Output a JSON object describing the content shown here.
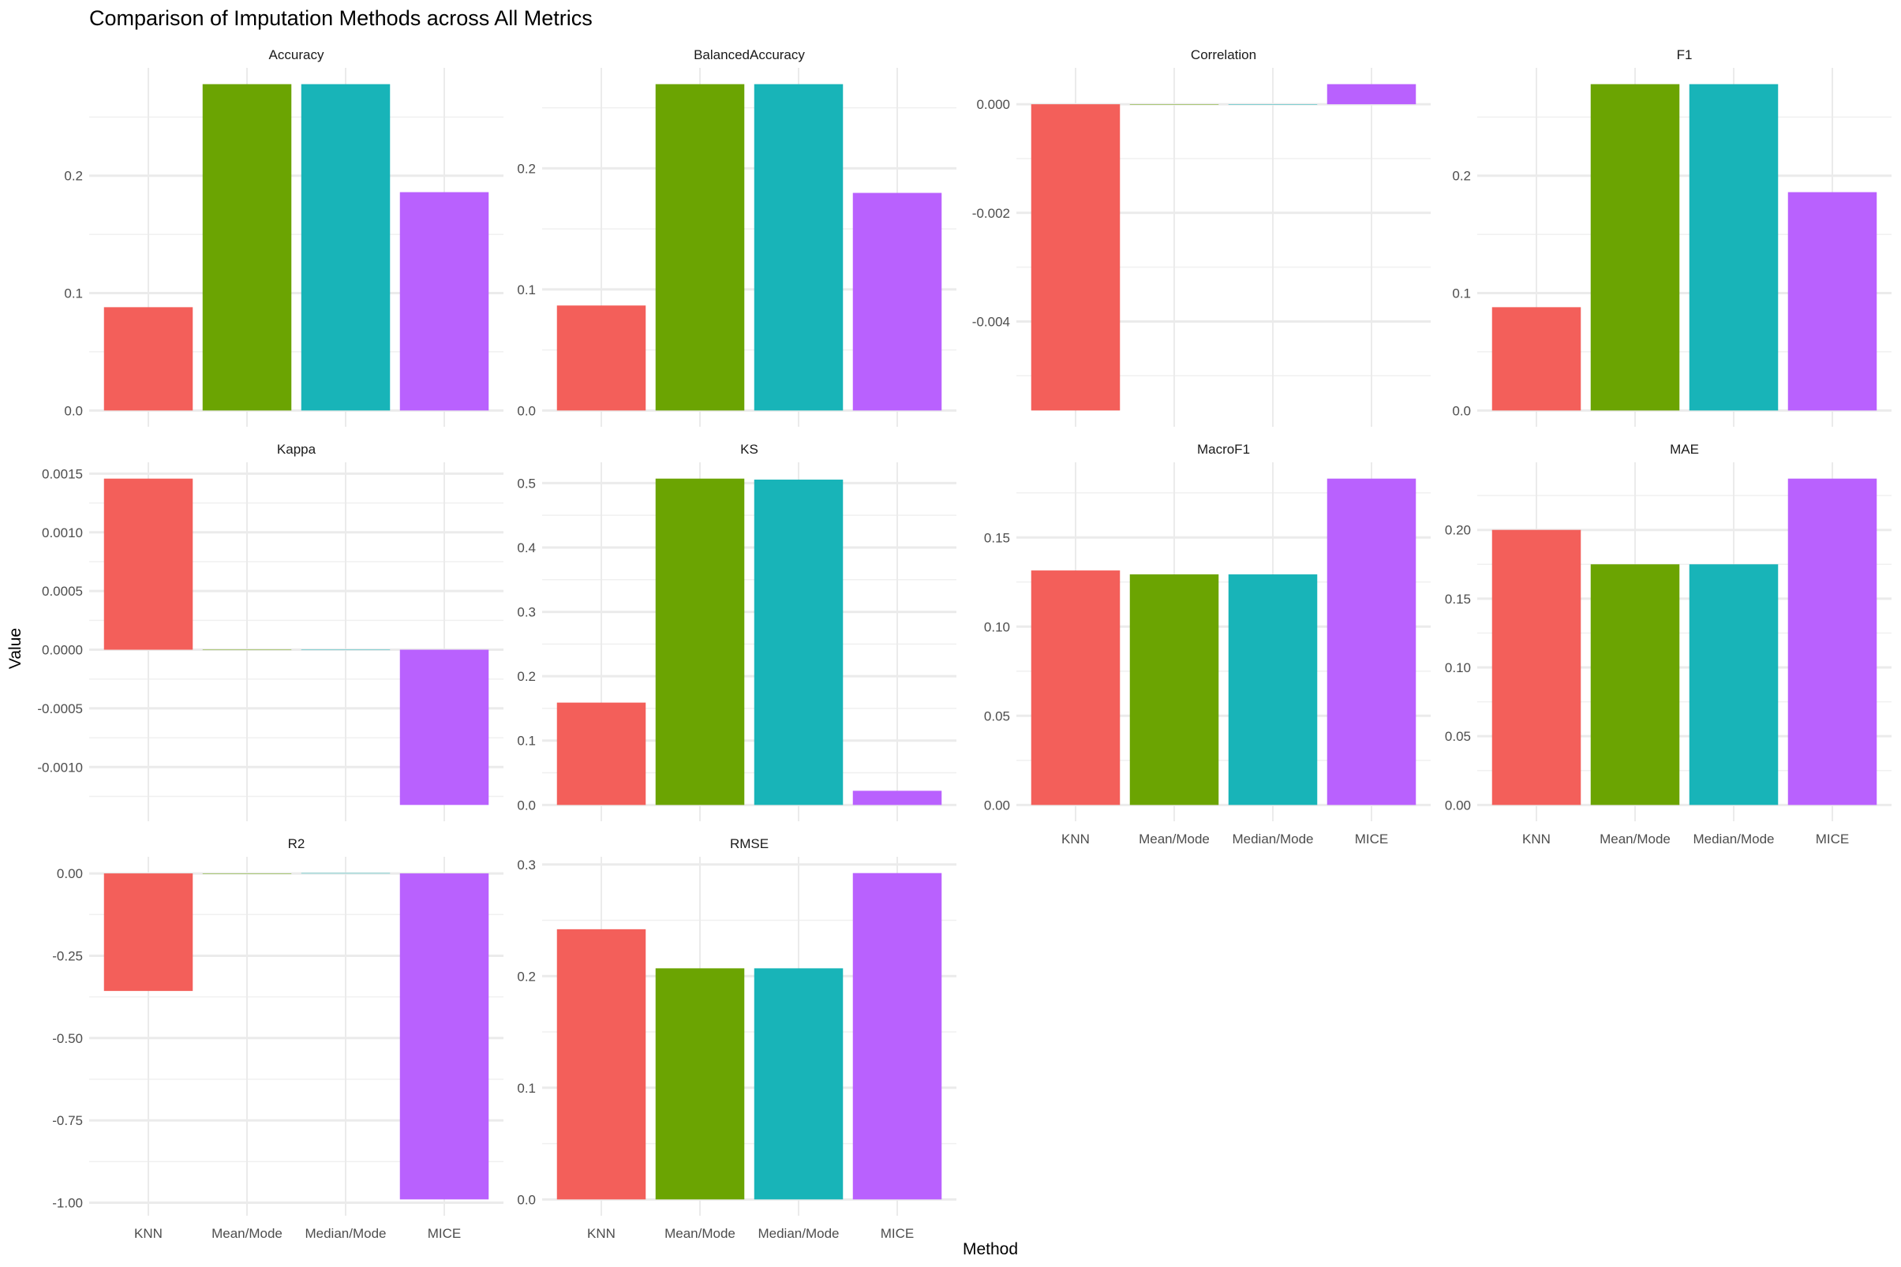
{
  "chart_data": {
    "type": "bar",
    "title": "Comparison of Imputation Methods across All Metrics",
    "xlabel": "Method",
    "ylabel": "Value",
    "categories": [
      "KNN",
      "Mean/Mode",
      "Median/Mode",
      "MICE"
    ],
    "colors": [
      "#F35F5A",
      "#6BA402",
      "#18B4B8",
      "#B961FE"
    ],
    "grid": true,
    "legend": "none",
    "facets": [
      {
        "name": "Accuracy",
        "values": [
          0.088,
          0.278,
          0.278,
          0.186
        ],
        "ticks": [
          0,
          0.1,
          0.2
        ],
        "tick_labels": [
          "0.0",
          "0.1",
          "0.2"
        ]
      },
      {
        "name": "BalancedAccuracy",
        "values": [
          0.0867,
          0.2695,
          0.2695,
          0.1797
        ],
        "ticks": [
          0,
          0.1,
          0.2
        ],
        "tick_labels": [
          "0.0",
          "0.1",
          "0.2"
        ]
      },
      {
        "name": "Correlation",
        "values": [
          -0.00564,
          0,
          0,
          0.00037
        ],
        "ticks": [
          -0.004,
          -0.002,
          0
        ],
        "tick_labels": [
          "-0.004",
          "-0.002",
          "0.000"
        ]
      },
      {
        "name": "F1",
        "values": [
          0.088,
          0.278,
          0.278,
          0.186
        ],
        "ticks": [
          0,
          0.1,
          0.2
        ],
        "tick_labels": [
          "0.0",
          "0.1",
          "0.2"
        ]
      },
      {
        "name": "Kappa",
        "values": [
          0.001458,
          0,
          0,
          -0.001323
        ],
        "ticks": [
          -0.001,
          -0.0005,
          0,
          0.0005,
          0.001,
          0.0015
        ],
        "tick_labels": [
          "-0.0010",
          "-0.0005",
          "0.0000",
          "0.0005",
          "0.0010",
          "0.0015"
        ]
      },
      {
        "name": "KS",
        "values": [
          0.159,
          0.507,
          0.5055,
          0.022
        ],
        "ticks": [
          0,
          0.1,
          0.2,
          0.3,
          0.4,
          0.5
        ],
        "tick_labels": [
          "0.0",
          "0.1",
          "0.2",
          "0.3",
          "0.4",
          "0.5"
        ]
      },
      {
        "name": "MacroF1",
        "values": [
          0.1315,
          0.1293,
          0.1293,
          0.183
        ],
        "ticks": [
          0,
          0.05,
          0.1,
          0.15
        ],
        "tick_labels": [
          "0.00",
          "0.05",
          "0.10",
          "0.15"
        ]
      },
      {
        "name": "MAE",
        "values": [
          0.2,
          0.175,
          0.175,
          0.2373
        ],
        "ticks": [
          0,
          0.05,
          0.1,
          0.15,
          0.2
        ],
        "tick_labels": [
          "0.00",
          "0.05",
          "0.10",
          "0.15",
          "0.20"
        ]
      },
      {
        "name": "R2",
        "values": [
          -0.357,
          0,
          0.001,
          -0.99
        ],
        "ticks": [
          -1,
          -0.75,
          -0.5,
          -0.25,
          0
        ],
        "tick_labels": [
          "-1.00",
          "-0.75",
          "-0.50",
          "-0.25",
          "0.00"
        ]
      },
      {
        "name": "RMSE",
        "values": [
          0.242,
          0.207,
          0.207,
          0.2923
        ],
        "ticks": [
          0,
          0.1,
          0.2,
          0.3
        ],
        "tick_labels": [
          "0.0",
          "0.1",
          "0.2",
          "0.3"
        ]
      }
    ]
  }
}
